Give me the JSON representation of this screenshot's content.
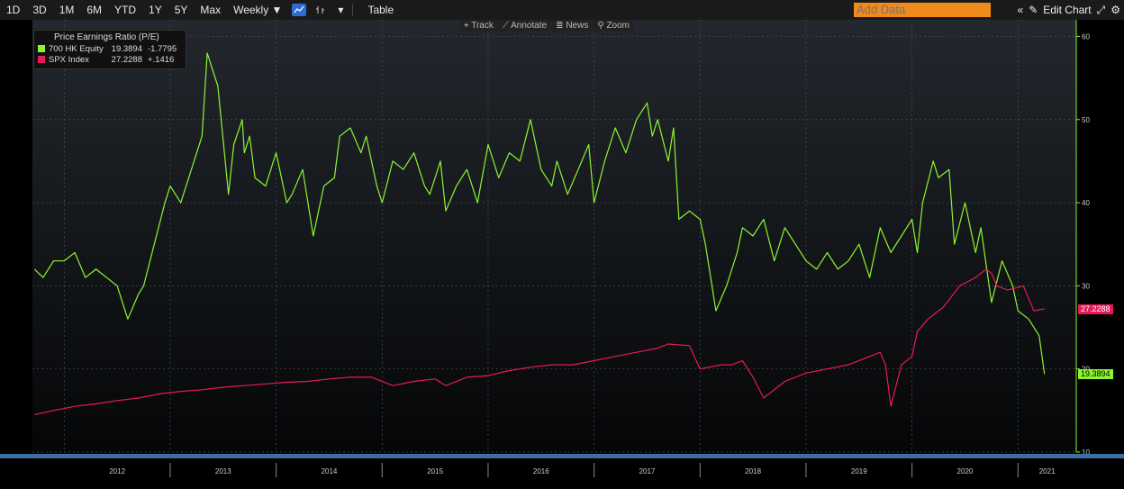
{
  "toolbar": {
    "ranges": [
      "1D",
      "3D",
      "1M",
      "6M",
      "YTD",
      "1Y",
      "5Y",
      "Max"
    ],
    "frequency": "Weekly ▼",
    "dropdown": "▾",
    "table_label": "Table",
    "add_data_placeholder": "Add Data",
    "edit_chart_label": "Edit Chart"
  },
  "top_tools": {
    "track": "Track",
    "annotate": "Annotate",
    "news": "News",
    "zoom": "Zoom"
  },
  "legend": {
    "title": "Price Earnings Ratio (P/E)",
    "series": [
      {
        "name": "700 HK Equity",
        "last": "19.3894",
        "change": "-1.7795",
        "color": "#8cf531"
      },
      {
        "name": "SPX Index",
        "last": "27.2288",
        "change": "+.1416",
        "color": "#e8195a"
      }
    ]
  },
  "last_labels": {
    "tencent": "19.3894",
    "spx": "27.2288"
  },
  "chart_data": {
    "type": "line",
    "title": "Price Earnings Ratio (P/E)",
    "ylim": [
      10,
      62
    ],
    "yticks": [
      10,
      20,
      30,
      40,
      50,
      60
    ],
    "xlim": [
      2011.7,
      2021.55
    ],
    "xticks": [
      "2012",
      "2013",
      "2014",
      "2015",
      "2016",
      "2017",
      "2018",
      "2019",
      "2020",
      "2021"
    ],
    "grid": true,
    "legend_position": "top-left",
    "series": [
      {
        "name": "700 HK Equity",
        "color": "#8cf531",
        "x": [
          2011.72,
          2011.8,
          2011.9,
          2012.0,
          2012.1,
          2012.2,
          2012.3,
          2012.4,
          2012.5,
          2012.6,
          2012.7,
          2012.75,
          2012.85,
          2012.95,
          2013.0,
          2013.1,
          2013.2,
          2013.3,
          2013.35,
          2013.45,
          2013.55,
          2013.6,
          2013.68,
          2013.7,
          2013.75,
          2013.8,
          2013.9,
          2014.0,
          2014.1,
          2014.15,
          2014.25,
          2014.35,
          2014.45,
          2014.55,
          2014.6,
          2014.7,
          2014.8,
          2014.85,
          2014.95,
          2015.0,
          2015.1,
          2015.2,
          2015.3,
          2015.4,
          2015.45,
          2015.55,
          2015.6,
          2015.7,
          2015.8,
          2015.9,
          2016.0,
          2016.1,
          2016.2,
          2016.3,
          2016.4,
          2016.5,
          2016.6,
          2016.65,
          2016.75,
          2016.85,
          2016.95,
          2017.0,
          2017.1,
          2017.2,
          2017.3,
          2017.4,
          2017.5,
          2017.55,
          2017.6,
          2017.7,
          2017.75,
          2017.8,
          2017.9,
          2018.0,
          2018.05,
          2018.15,
          2018.25,
          2018.35,
          2018.4,
          2018.5,
          2018.6,
          2018.7,
          2018.8,
          2018.9,
          2019.0,
          2019.1,
          2019.2,
          2019.3,
          2019.4,
          2019.5,
          2019.6,
          2019.7,
          2019.8,
          2019.9,
          2020.0,
          2020.05,
          2020.1,
          2020.2,
          2020.25,
          2020.35,
          2020.4,
          2020.5,
          2020.6,
          2020.65,
          2020.75,
          2020.85,
          2020.95,
          2021.0,
          2021.1,
          2021.2,
          2021.25
        ],
        "y": [
          32,
          31,
          33,
          33,
          34,
          31,
          32,
          31,
          30,
          26,
          29,
          30,
          35,
          40,
          42,
          40,
          44,
          48,
          58,
          54,
          41,
          47,
          50,
          46,
          48,
          43,
          42,
          46,
          40,
          41,
          44,
          36,
          42,
          43,
          48,
          49,
          46,
          48,
          42,
          40,
          45,
          44,
          46,
          42,
          41,
          45,
          39,
          42,
          44,
          40,
          47,
          43,
          46,
          45,
          50,
          44,
          42,
          45,
          41,
          44,
          47,
          40,
          45,
          49,
          46,
          50,
          52,
          48,
          50,
          45,
          49,
          38,
          39,
          38,
          35,
          27,
          30,
          34,
          37,
          36,
          38,
          33,
          37,
          35,
          33,
          32,
          34,
          32,
          33,
          35,
          31,
          37,
          34,
          36,
          38,
          34,
          40,
          45,
          43,
          44,
          35,
          40,
          34,
          37,
          28,
          33,
          30,
          27,
          26,
          24,
          19.39
        ]
      },
      {
        "name": "SPX Index",
        "color": "#e8195a",
        "x": [
          2011.72,
          2011.9,
          2012.1,
          2012.3,
          2012.5,
          2012.7,
          2012.9,
          2013.1,
          2013.3,
          2013.5,
          2013.7,
          2013.9,
          2014.1,
          2014.3,
          2014.5,
          2014.7,
          2014.9,
          2015.1,
          2015.3,
          2015.5,
          2015.6,
          2015.8,
          2016.0,
          2016.2,
          2016.4,
          2016.6,
          2016.8,
          2017.0,
          2017.2,
          2017.4,
          2017.6,
          2017.7,
          2017.9,
          2018.0,
          2018.2,
          2018.3,
          2018.4,
          2018.5,
          2018.6,
          2018.8,
          2019.0,
          2019.2,
          2019.4,
          2019.6,
          2019.7,
          2019.75,
          2019.8,
          2019.9,
          2020.0,
          2020.05,
          2020.15,
          2020.3,
          2020.45,
          2020.6,
          2020.7,
          2020.75,
          2020.8,
          2020.9,
          2021.0,
          2021.05,
          2021.15,
          2021.25
        ],
        "y": [
          14.5,
          15,
          15.5,
          15.8,
          16.2,
          16.5,
          17,
          17.3,
          17.5,
          17.8,
          18,
          18.2,
          18.4,
          18.5,
          18.8,
          19,
          19,
          18,
          18.5,
          18.8,
          18,
          19,
          19.2,
          19.8,
          20.2,
          20.5,
          20.5,
          21,
          21.5,
          22,
          22.5,
          23,
          22.8,
          20,
          20.5,
          20.5,
          21,
          19,
          16.5,
          18.5,
          19.5,
          20,
          20.5,
          21.5,
          22,
          20.5,
          15.5,
          20.5,
          21.5,
          24.5,
          26,
          27.5,
          30,
          31,
          32,
          31.5,
          30,
          29.5,
          29.8,
          30,
          27,
          27.23
        ]
      }
    ]
  }
}
